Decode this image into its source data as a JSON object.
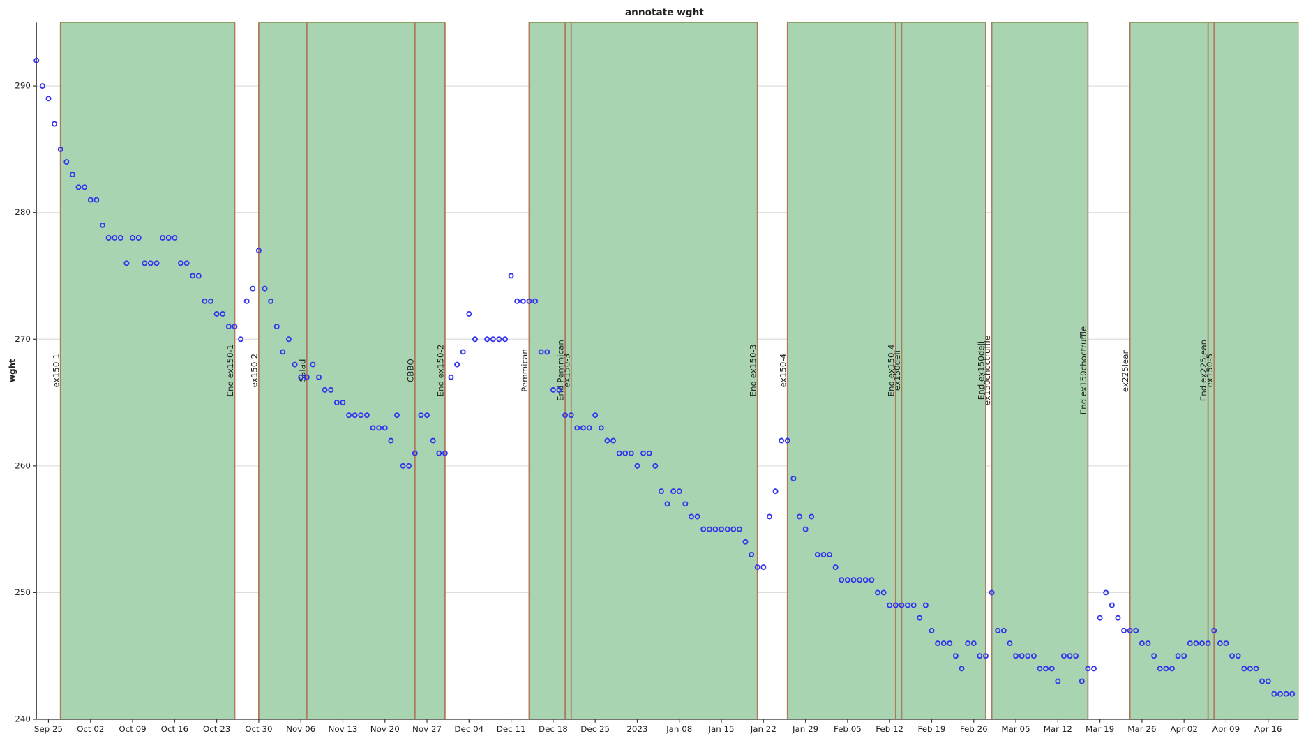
{
  "chart_data": {
    "type": "scatter",
    "title": "annotate wght",
    "y_label": "wght",
    "color": "#3333ee",
    "span_color": "#a9d4b2",
    "span_edge_color": "#8a9a5a",
    "grid": true,
    "xlim": [
      "2022-09-23",
      "2023-04-21"
    ],
    "ylim": [
      240,
      295
    ],
    "yticks": [
      240,
      250,
      260,
      270,
      280,
      290
    ],
    "xticks": [
      {
        "value": "2022-09-25",
        "label": "Sep 25"
      },
      {
        "value": "2022-10-02",
        "label": "Oct 02"
      },
      {
        "value": "2022-10-09",
        "label": "Oct 09"
      },
      {
        "value": "2022-10-16",
        "label": "Oct 16"
      },
      {
        "value": "2022-10-23",
        "label": "Oct 23"
      },
      {
        "value": "2022-10-30",
        "label": "Oct 30"
      },
      {
        "value": "2022-11-06",
        "label": "Nov 06"
      },
      {
        "value": "2022-11-13",
        "label": "Nov 13"
      },
      {
        "value": "2022-11-20",
        "label": "Nov 20"
      },
      {
        "value": "2022-11-27",
        "label": "Nov 27"
      },
      {
        "value": "2022-12-04",
        "label": "Dec 04"
      },
      {
        "value": "2022-12-11",
        "label": "Dec 11"
      },
      {
        "value": "2022-12-18",
        "label": "Dec 18"
      },
      {
        "value": "2022-12-25",
        "label": "Dec 25"
      },
      {
        "value": "2023-01-01",
        "label": "2023"
      },
      {
        "value": "2023-01-08",
        "label": "Jan 08"
      },
      {
        "value": "2023-01-15",
        "label": "Jan 15"
      },
      {
        "value": "2023-01-22",
        "label": "Jan 22"
      },
      {
        "value": "2023-01-29",
        "label": "Jan 29"
      },
      {
        "value": "2023-02-05",
        "label": "Feb 05"
      },
      {
        "value": "2023-02-12",
        "label": "Feb 12"
      },
      {
        "value": "2023-02-19",
        "label": "Feb 19"
      },
      {
        "value": "2023-02-26",
        "label": "Feb 26"
      },
      {
        "value": "2023-03-05",
        "label": "Mar 05"
      },
      {
        "value": "2023-03-12",
        "label": "Mar 12"
      },
      {
        "value": "2023-03-19",
        "label": "Mar 19"
      },
      {
        "value": "2023-03-26",
        "label": "Mar 26"
      },
      {
        "value": "2023-04-02",
        "label": "Apr 02"
      },
      {
        "value": "2023-04-09",
        "label": "Apr 09"
      },
      {
        "value": "2023-04-16",
        "label": "Apr 16"
      }
    ],
    "x": [
      "2022-09-23",
      "2022-09-24",
      "2022-09-25",
      "2022-09-26",
      "2022-09-27",
      "2022-09-28",
      "2022-09-29",
      "2022-09-30",
      "2022-10-01",
      "2022-10-02",
      "2022-10-03",
      "2022-10-04",
      "2022-10-05",
      "2022-10-06",
      "2022-10-07",
      "2022-10-08",
      "2022-10-09",
      "2022-10-10",
      "2022-10-11",
      "2022-10-12",
      "2022-10-13",
      "2022-10-14",
      "2022-10-15",
      "2022-10-16",
      "2022-10-17",
      "2022-10-18",
      "2022-10-19",
      "2022-10-20",
      "2022-10-21",
      "2022-10-22",
      "2022-10-23",
      "2022-10-24",
      "2022-10-25",
      "2022-10-26",
      "2022-10-27",
      "2022-10-28",
      "2022-10-29",
      "2022-10-30",
      "2022-10-31",
      "2022-11-01",
      "2022-11-02",
      "2022-11-03",
      "2022-11-04",
      "2022-11-05",
      "2022-11-06",
      "2022-11-07",
      "2022-11-08",
      "2022-11-09",
      "2022-11-10",
      "2022-11-11",
      "2022-11-12",
      "2022-11-13",
      "2022-11-14",
      "2022-11-15",
      "2022-11-16",
      "2022-11-17",
      "2022-11-18",
      "2022-11-19",
      "2022-11-20",
      "2022-11-21",
      "2022-11-22",
      "2022-11-23",
      "2022-11-24",
      "2022-11-25",
      "2022-11-26",
      "2022-11-27",
      "2022-11-28",
      "2022-11-29",
      "2022-11-30",
      "2022-12-01",
      "2022-12-02",
      "2022-12-03",
      "2022-12-04",
      "2022-12-05",
      "2022-12-07",
      "2022-12-08",
      "2022-12-09",
      "2022-12-10",
      "2022-12-11",
      "2022-12-12",
      "2022-12-13",
      "2022-12-14",
      "2022-12-15",
      "2022-12-16",
      "2022-12-17",
      "2022-12-18",
      "2022-12-19",
      "2022-12-20",
      "2022-12-21",
      "2022-12-22",
      "2022-12-23",
      "2022-12-24",
      "2022-12-25",
      "2022-12-26",
      "2022-12-27",
      "2022-12-28",
      "2022-12-29",
      "2022-12-30",
      "2022-12-31",
      "2023-01-01",
      "2023-01-02",
      "2023-01-03",
      "2023-01-04",
      "2023-01-05",
      "2023-01-06",
      "2023-01-07",
      "2023-01-08",
      "2023-01-09",
      "2023-01-10",
      "2023-01-11",
      "2023-01-12",
      "2023-01-13",
      "2023-01-14",
      "2023-01-15",
      "2023-01-16",
      "2023-01-17",
      "2023-01-18",
      "2023-01-19",
      "2023-01-20",
      "2023-01-21",
      "2023-01-22",
      "2023-01-23",
      "2023-01-24",
      "2023-01-25",
      "2023-01-26",
      "2023-01-27",
      "2023-01-28",
      "2023-01-29",
      "2023-01-30",
      "2023-01-31",
      "2023-02-01",
      "2023-02-02",
      "2023-02-03",
      "2023-02-04",
      "2023-02-05",
      "2023-02-06",
      "2023-02-07",
      "2023-02-08",
      "2023-02-09",
      "2023-02-10",
      "2023-02-11",
      "2023-02-12",
      "2023-02-13",
      "2023-02-14",
      "2023-02-15",
      "2023-02-16",
      "2023-02-17",
      "2023-02-18",
      "2023-02-19",
      "2023-02-20",
      "2023-02-21",
      "2023-02-22",
      "2023-02-23",
      "2023-02-24",
      "2023-02-25",
      "2023-02-26",
      "2023-02-27",
      "2023-02-28",
      "2023-03-01",
      "2023-03-02",
      "2023-03-03",
      "2023-03-04",
      "2023-03-05",
      "2023-03-06",
      "2023-03-07",
      "2023-03-08",
      "2023-03-09",
      "2023-03-10",
      "2023-03-11",
      "2023-03-12",
      "2023-03-13",
      "2023-03-14",
      "2023-03-15",
      "2023-03-16",
      "2023-03-17",
      "2023-03-18",
      "2023-03-19",
      "2023-03-20",
      "2023-03-21",
      "2023-03-22",
      "2023-03-23",
      "2023-03-24",
      "2023-03-25",
      "2023-03-26",
      "2023-03-27",
      "2023-03-28",
      "2023-03-29",
      "2023-03-30",
      "2023-03-31",
      "2023-04-01",
      "2023-04-02",
      "2023-04-03",
      "2023-04-04",
      "2023-04-05",
      "2023-04-06",
      "2023-04-07",
      "2023-04-08",
      "2023-04-09",
      "2023-04-10",
      "2023-04-11",
      "2023-04-12",
      "2023-04-13",
      "2023-04-14",
      "2023-04-15",
      "2023-04-16",
      "2023-04-17",
      "2023-04-18",
      "2023-04-19",
      "2023-04-20"
    ],
    "values": [
      292,
      290,
      289,
      287,
      285,
      284,
      283,
      282,
      282,
      281,
      281,
      279,
      278,
      278,
      278,
      276,
      278,
      278,
      276,
      276,
      276,
      278,
      278,
      278,
      276,
      276,
      275,
      275,
      273,
      273,
      272,
      272,
      271,
      271,
      270,
      273,
      274,
      277,
      274,
      273,
      271,
      269,
      270,
      268,
      267,
      267,
      268,
      267,
      266,
      266,
      265,
      265,
      264,
      264,
      264,
      264,
      263,
      263,
      263,
      262,
      264,
      260,
      260,
      261,
      264,
      264,
      262,
      261,
      261,
      267,
      268,
      269,
      272,
      270,
      270,
      270,
      270,
      270,
      275,
      273,
      273,
      273,
      273,
      269,
      269,
      266,
      266,
      264,
      264,
      263,
      263,
      263,
      264,
      263,
      262,
      262,
      261,
      261,
      261,
      260,
      261,
      261,
      260,
      258,
      257,
      258,
      258,
      257,
      256,
      256,
      255,
      255,
      255,
      255,
      255,
      255,
      255,
      254,
      253,
      252,
      252,
      256,
      258,
      262,
      262,
      259,
      256,
      255,
      256,
      253,
      253,
      253,
      252,
      251,
      251,
      251,
      251,
      251,
      251,
      250,
      250,
      249,
      249,
      249,
      249,
      249,
      248,
      249,
      247,
      246,
      246,
      246,
      245,
      244,
      246,
      246,
      245,
      245,
      250,
      247,
      247,
      246,
      245,
      245,
      245,
      245,
      244,
      244,
      244,
      243,
      245,
      245,
      245,
      243,
      244,
      244,
      248,
      250,
      249,
      248,
      247,
      247,
      247,
      246,
      246,
      245,
      244,
      244,
      244,
      245,
      245,
      246,
      246,
      246,
      246,
      247,
      246,
      246,
      245,
      245,
      244,
      244,
      244,
      243,
      243,
      242,
      242,
      242,
      242
    ],
    "spans": [
      {
        "start": "2022-09-27",
        "end": "2022-10-26"
      },
      {
        "start": "2022-10-30",
        "end": "2022-11-30"
      },
      {
        "start": "2022-12-14",
        "end": "2023-01-21"
      },
      {
        "start": "2023-01-26",
        "end": "2023-02-28"
      },
      {
        "start": "2023-03-01",
        "end": "2023-03-17"
      },
      {
        "start": "2023-03-24",
        "end": null
      }
    ],
    "events": [
      {
        "x": "2022-09-27",
        "label": "ex150-1",
        "color": "#e02020"
      },
      {
        "x": "2022-10-26",
        "label": "End ex150-1",
        "color": "#a0522d"
      },
      {
        "x": "2022-10-30",
        "label": "ex150-2",
        "color": "#e02020"
      },
      {
        "x": "2022-11-07",
        "label": "Salad",
        "color": "#a0522d"
      },
      {
        "x": "2022-11-25",
        "label": "CBBQ",
        "color": "#a0522d"
      },
      {
        "x": "2022-11-30",
        "label": "End ex150-2",
        "color": "#a0522d"
      },
      {
        "x": "2022-12-14",
        "label": "Pemmican",
        "color": "#e02020"
      },
      {
        "x": "2022-12-20",
        "label": "End Pemmican",
        "color": "#a0522d"
      },
      {
        "x": "2022-12-21",
        "label": "ex150-3",
        "color": "#a0522d"
      },
      {
        "x": "2023-01-21",
        "label": "End ex150-3",
        "color": "#a0522d"
      },
      {
        "x": "2023-01-26",
        "label": "ex150-4",
        "color": "#e02020"
      },
      {
        "x": "2023-02-13",
        "label": "End ex150-4",
        "color": "#a0522d"
      },
      {
        "x": "2023-02-14",
        "label": "ex150deli",
        "color": "#a0522d"
      },
      {
        "x": "2023-02-28",
        "label": "End ex150deli",
        "color": "#a0522d"
      },
      {
        "x": "2023-03-01",
        "label": "ex150choctruffle",
        "color": "#e02020"
      },
      {
        "x": "2023-03-17",
        "label": "End ex150choctruffle",
        "color": "#a0522d"
      },
      {
        "x": "2023-03-24",
        "label": "ex225lean",
        "color": "#e02020"
      },
      {
        "x": "2023-04-06",
        "label": "End ex225lean",
        "color": "#a0522d"
      },
      {
        "x": "2023-04-07",
        "label": "ex150-5",
        "color": "#e02020"
      }
    ]
  }
}
